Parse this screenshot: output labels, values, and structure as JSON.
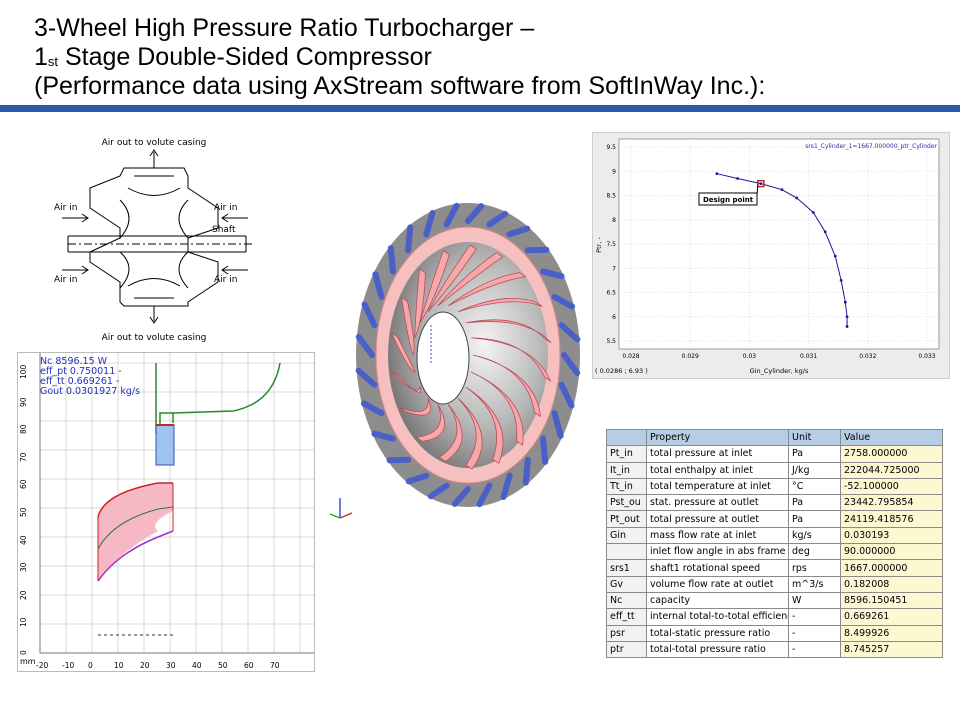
{
  "title": {
    "line1": "3-Wheel High Pressure Ratio Turbocharger –",
    "line2_num": "1",
    "line2_sup": "st",
    "line2_rest": " Stage Double-Sided Compressor",
    "line3": "(Performance data using AxStream software from SoftInWay Inc.):"
  },
  "schematic": {
    "top_label": "Air out to volute casing",
    "bottom_label": "Air out to volute casing",
    "left_top": "Air in",
    "left_bottom": "Air in",
    "right_top": "Air in",
    "right_bottom": "Air in",
    "shaft": "Shaft"
  },
  "meridional": {
    "legend": [
      "Nc 8596.15 W",
      "eff_pt 0.750011 -",
      "eff_tt 0.669261 -",
      "Gout 0.0301927 kg/s"
    ],
    "unit": "mm",
    "y_ticks": [
      "100",
      "90",
      "80",
      "70",
      "60",
      "50",
      "40",
      "30",
      "20",
      "10",
      "0"
    ],
    "x_ticks": [
      "-20",
      "-10",
      "0",
      "10",
      "20",
      "30",
      "40",
      "50",
      "60",
      "70"
    ]
  },
  "chart_data": {
    "type": "line",
    "title": "srs1_Cylinder_1=1667.000000_ptr_Cylinder",
    "xlabel": "Gin_Cylinder, kg/s",
    "ylabel": "Ptr, -",
    "xlim": [
      0.028,
      0.033
    ],
    "ylim": [
      5.5,
      9.5
    ],
    "x_ticks": [
      "0.028",
      "0.029",
      "0.03",
      "0.031",
      "0.032",
      "0.033"
    ],
    "y_ticks": [
      "9.5",
      "9",
      "8.5",
      "8",
      "7.5",
      "7",
      "6.5",
      "6",
      "5.5"
    ],
    "cursor_readout": "( 0.0286 ; 6.93 )",
    "annotation": "Design point",
    "design_point": {
      "x": 0.030193,
      "y": 8.745
    },
    "series": [
      {
        "x": [
          0.02945,
          0.0298,
          0.030193,
          0.03055,
          0.0308,
          0.03108,
          0.03128,
          0.03145,
          0.03155,
          0.03162,
          0.03165,
          0.03165
        ],
        "y": [
          8.95,
          8.85,
          8.745,
          8.62,
          8.45,
          8.15,
          7.75,
          7.25,
          6.75,
          6.3,
          6.0,
          5.8
        ]
      }
    ]
  },
  "table": {
    "headers": [
      "",
      "Property",
      "Unit",
      "Value"
    ],
    "rows": [
      [
        "Pt_in",
        "total pressure at inlet",
        "Pa",
        "2758.000000"
      ],
      [
        "It_in",
        "total enthalpy at inlet",
        "J/kg",
        "222044.725000"
      ],
      [
        "Tt_in",
        "total temperature at inlet",
        "°C",
        "-52.100000"
      ],
      [
        "Pst_ou",
        "stat. pressure at outlet",
        "Pa",
        "23442.795854"
      ],
      [
        "Pt_out",
        "total pressure at outlet",
        "Pa",
        "24119.418576"
      ],
      [
        "Gin",
        "mass flow rate at inlet",
        "kg/s",
        "0.030193"
      ],
      [
        "",
        "inlet flow angle in abs frame",
        "deg",
        "90.000000"
      ],
      [
        "srs1",
        "shaft1 rotational speed",
        "rps",
        "1667.000000"
      ],
      [
        "Gv",
        "volume flow rate at outlet",
        "m^3/s",
        "0.182008"
      ],
      [
        "Nc",
        "capacity",
        "W",
        "8596.150451"
      ],
      [
        "eff_tt",
        "internal total-to-total efficienc",
        "-",
        "0.669261"
      ],
      [
        "psr",
        "total-static pressure ratio",
        "-",
        "8.499926"
      ],
      [
        "ptr",
        "total-total pressure ratio",
        "-",
        "8.745257"
      ]
    ]
  },
  "colors": {
    "rule": "#2a5aa8",
    "curve": "#1a1a9a",
    "design_marker": "#cc2222",
    "blade_pink": "#f4a9a9",
    "blade_blue": "#4a5fc8",
    "hub_gray": "#9a9a9a"
  }
}
